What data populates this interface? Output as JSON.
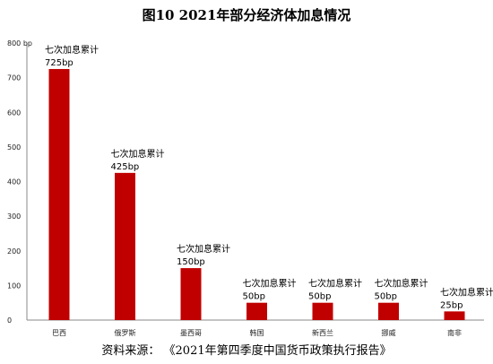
{
  "title": "图10 2021年部分经济体加息情况",
  "source": "资料来源： 《2021年第四季度中国货币政策执行报告》",
  "chart_data": {
    "type": "bar",
    "categories": [
      "巴西",
      "俄罗斯",
      "墨西哥",
      "韩国",
      "新西兰",
      "挪威",
      "南非"
    ],
    "values": [
      725,
      425,
      150,
      50,
      50,
      50,
      25
    ],
    "annotation_titles": [
      "七次加息累计",
      "七次加息累计",
      "七次加息累计",
      "七次加息累计",
      "七次加息累计",
      "七次加息累计",
      "七次加息累计"
    ],
    "value_labels": [
      "725bp",
      "425bp",
      "150bp",
      "50bp",
      "50bp",
      "50bp",
      "25bp"
    ],
    "y_unit": "bp",
    "ylim": [
      0,
      800
    ],
    "yticks": [
      0,
      100,
      200,
      300,
      400,
      500,
      600,
      700,
      800
    ],
    "grid": false,
    "bar_color": "#c00000"
  }
}
